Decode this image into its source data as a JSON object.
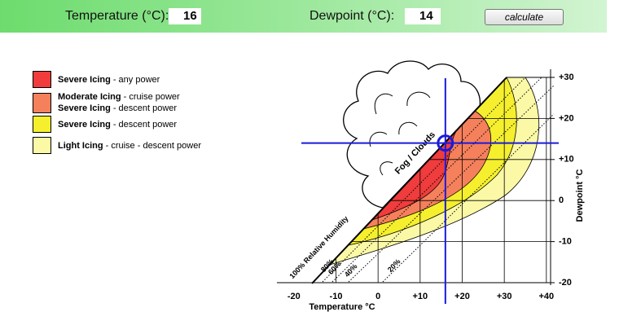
{
  "header": {
    "temperature_label": "Temperature (°C):",
    "temperature": 16,
    "dewpoint_label": "Dewpoint (°C):",
    "dewpoint": 14,
    "button": "calculate"
  },
  "legend": [
    {
      "color": "#f03c3c",
      "lines": [
        {
          "bold": "Severe Icing",
          "rest": "- any power"
        }
      ]
    },
    {
      "color": "#f5805c",
      "lines": [
        {
          "bold": "Moderate Icing",
          "rest": "- cruise power"
        },
        {
          "bold": "Severe Icing",
          "rest": "- descent power"
        }
      ]
    },
    {
      "color": "#f5ef2e",
      "lines": [
        {
          "bold": "Severe Icing",
          "rest": "- descent power"
        }
      ]
    },
    {
      "color": "#fbf9a6",
      "lines": [
        {
          "bold": "Light Icing",
          "rest": "- cruise - descent power"
        }
      ]
    }
  ],
  "chart_data": {
    "type": "icing",
    "xlabel": "Temperature °C",
    "ylabel": "Dewpoint °C",
    "xlim": [
      -25,
      41
    ],
    "ylim": [
      -20,
      30
    ],
    "xticks": [
      -20,
      -10,
      0,
      {
        "value": 10,
        "label": "+10"
      },
      {
        "value": 20,
        "label": "+20"
      },
      {
        "value": 30,
        "label": "+30"
      },
      {
        "value": 40,
        "label": "+40"
      }
    ],
    "yticks": [
      -20,
      -10,
      0,
      {
        "value": 10,
        "label": "+10"
      },
      {
        "value": 20,
        "label": "+20"
      },
      {
        "value": 30,
        "label": "+30"
      }
    ],
    "cloud_label": "Fog / Clouds",
    "saturation_label": "100% Relative Humidity",
    "humidity_labels": [
      "80%",
      "60%",
      "40%",
      "20%"
    ],
    "crosshair_color": "#1a1adc"
  }
}
